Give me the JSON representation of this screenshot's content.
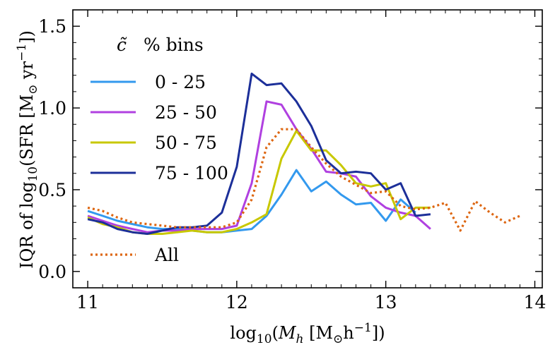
{
  "chart_data": {
    "type": "line",
    "xlabel": "log10(Mh [M⊙h−1])",
    "ylabel": "IQR of log10(SFR [M⊙ yr−1])",
    "xlim": [
      10.9,
      14.05
    ],
    "ylim": [
      -0.1,
      1.6
    ],
    "xticks": [
      11,
      12,
      13,
      14
    ],
    "xtick_labels": [
      "11",
      "12",
      "13",
      "14"
    ],
    "yticks": [
      0.0,
      0.5,
      1.0,
      1.5
    ],
    "ytick_labels": [
      "0.0",
      "0.5",
      "1.0",
      "1.5"
    ],
    "grid": false,
    "legend": {
      "position": "top-left",
      "title_c": "c̃",
      "title_rest": "% bins"
    },
    "series": [
      {
        "name": "0 - 25",
        "color": "#3399ee",
        "style": "solid",
        "x": [
          11.0,
          11.1,
          11.2,
          11.3,
          11.4,
          11.5,
          11.6,
          11.7,
          11.8,
          11.9,
          12.0,
          12.1,
          12.2,
          12.3,
          12.4,
          12.5,
          12.6,
          12.7,
          12.8,
          12.9,
          13.0,
          13.1,
          13.2
        ],
        "values": [
          0.37,
          0.34,
          0.31,
          0.29,
          0.27,
          0.26,
          0.26,
          0.25,
          0.24,
          0.24,
          0.25,
          0.26,
          0.34,
          0.47,
          0.62,
          0.49,
          0.55,
          0.47,
          0.41,
          0.42,
          0.31,
          0.44,
          0.36
        ]
      },
      {
        "name": "25 - 50",
        "color": "#b040e0",
        "style": "solid",
        "x": [
          11.0,
          11.1,
          11.2,
          11.3,
          11.4,
          11.5,
          11.6,
          11.7,
          11.8,
          11.9,
          12.0,
          12.1,
          12.2,
          12.3,
          12.4,
          12.5,
          12.6,
          12.7,
          12.8,
          12.9,
          13.0,
          13.1,
          13.2,
          13.3
        ],
        "values": [
          0.34,
          0.31,
          0.28,
          0.26,
          0.24,
          0.25,
          0.25,
          0.26,
          0.26,
          0.26,
          0.28,
          0.54,
          1.04,
          1.02,
          0.87,
          0.75,
          0.61,
          0.6,
          0.58,
          0.46,
          0.39,
          0.36,
          0.34,
          0.26
        ]
      },
      {
        "name": "50 - 75",
        "color": "#c8c800",
        "style": "solid",
        "x": [
          11.0,
          11.1,
          11.2,
          11.3,
          11.4,
          11.5,
          11.6,
          11.7,
          11.8,
          11.9,
          12.0,
          12.1,
          12.2,
          12.3,
          12.4,
          12.5,
          12.6,
          12.7,
          12.8,
          12.9,
          13.0,
          13.1,
          13.2,
          13.3
        ],
        "values": [
          0.33,
          0.29,
          0.27,
          0.24,
          0.23,
          0.23,
          0.24,
          0.25,
          0.24,
          0.24,
          0.26,
          0.3,
          0.35,
          0.69,
          0.86,
          0.74,
          0.74,
          0.65,
          0.54,
          0.52,
          0.54,
          0.32,
          0.39,
          0.39
        ]
      },
      {
        "name": "75 - 100",
        "color": "#1c2f99",
        "style": "solid",
        "x": [
          11.0,
          11.1,
          11.2,
          11.3,
          11.4,
          11.5,
          11.6,
          11.7,
          11.8,
          11.9,
          12.0,
          12.1,
          12.2,
          12.3,
          12.4,
          12.5,
          12.6,
          12.7,
          12.8,
          12.9,
          13.0,
          13.1,
          13.2,
          13.3
        ],
        "values": [
          0.32,
          0.3,
          0.26,
          0.24,
          0.23,
          0.25,
          0.27,
          0.27,
          0.28,
          0.36,
          0.64,
          1.21,
          1.14,
          1.15,
          1.04,
          0.89,
          0.68,
          0.6,
          0.61,
          0.6,
          0.5,
          0.54,
          0.34,
          0.35
        ]
      },
      {
        "name": "All",
        "color": "#dd6611",
        "style": "dotted",
        "x": [
          11.0,
          11.1,
          11.2,
          11.3,
          11.4,
          11.5,
          11.6,
          11.7,
          11.8,
          11.9,
          12.0,
          12.1,
          12.2,
          12.3,
          12.4,
          12.5,
          12.6,
          12.7,
          12.8,
          12.9,
          13.0,
          13.1,
          13.2,
          13.3,
          13.4,
          13.5,
          13.6,
          13.7,
          13.8,
          13.9
        ],
        "values": [
          0.39,
          0.37,
          0.33,
          0.3,
          0.29,
          0.28,
          0.27,
          0.27,
          0.27,
          0.27,
          0.3,
          0.44,
          0.76,
          0.87,
          0.87,
          0.76,
          0.66,
          0.58,
          0.53,
          0.48,
          0.49,
          0.4,
          0.38,
          0.39,
          0.42,
          0.25,
          0.43,
          0.36,
          0.3,
          0.34
        ]
      }
    ]
  }
}
